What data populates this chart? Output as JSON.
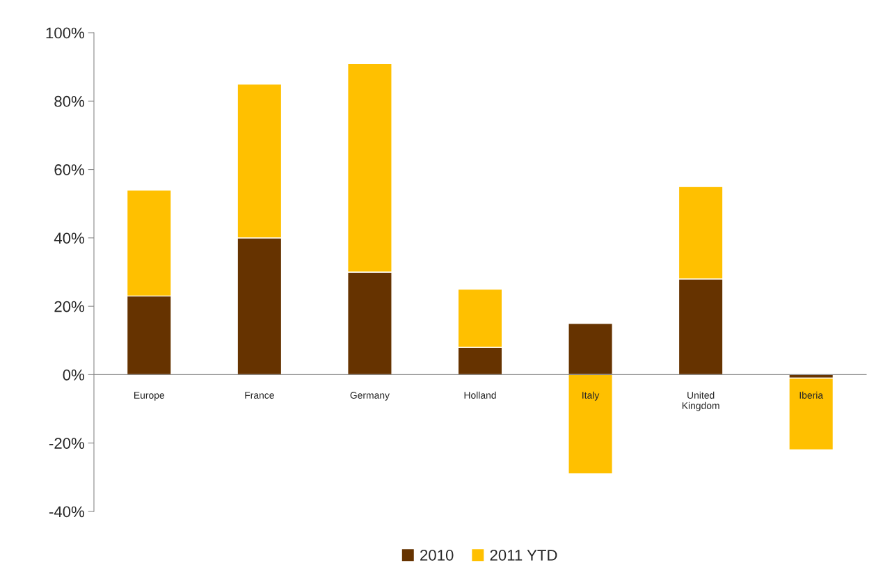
{
  "chart_data": {
    "type": "bar",
    "stacked": true,
    "categories": [
      "Europe",
      "France",
      "Germany",
      "Holland",
      "Italy",
      "United\nKingdom",
      "Iberia"
    ],
    "series": [
      {
        "name": "2010",
        "color": "#663300",
        "values": [
          23,
          40,
          30,
          8,
          15,
          28,
          -1
        ]
      },
      {
        "name": "2011 YTD",
        "color": "#ffc000",
        "values": [
          31,
          45,
          61,
          17,
          -29,
          27,
          -21
        ]
      }
    ],
    "ylim": [
      -40,
      100
    ],
    "yticks": [
      {
        "value": -40,
        "label": "-40%"
      },
      {
        "value": -20,
        "label": "-20%"
      },
      {
        "value": 0,
        "label": "0%"
      },
      {
        "value": 20,
        "label": "20%"
      },
      {
        "value": 40,
        "label": "40%"
      },
      {
        "value": 60,
        "label": "60%"
      },
      {
        "value": 80,
        "label": "80%"
      },
      {
        "value": 100,
        "label": "100%"
      }
    ],
    "grid": false,
    "legend": "bottom"
  }
}
